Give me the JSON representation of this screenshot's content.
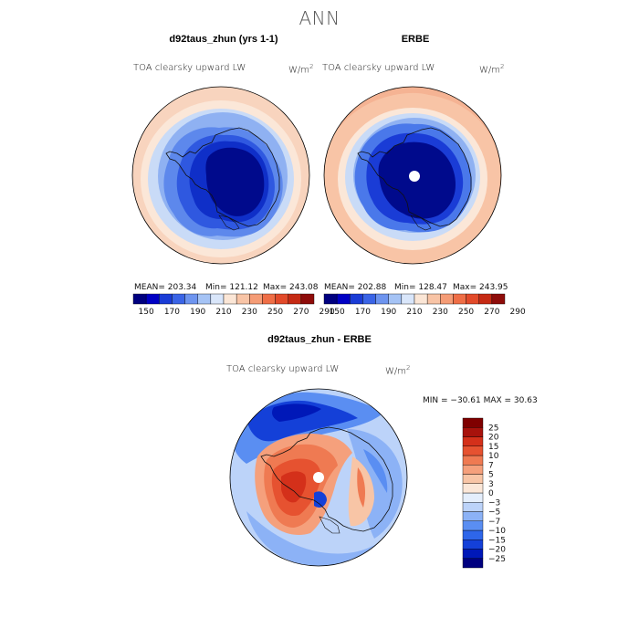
{
  "page": {
    "title": "ANN"
  },
  "panels": [
    {
      "title": "d92taus_zhun (yrs 1-1)",
      "left_label": "TOA clearsky upward LW",
      "right_label": "W/m",
      "unit_sup": "2",
      "stats": {
        "mean": "MEAN= 203.34",
        "min": "Min= 121.12",
        "max": "Max= 243.08"
      }
    },
    {
      "title": "ERBE",
      "left_label": "TOA clearsky upward LW",
      "right_label": "W/m",
      "unit_sup": "2",
      "stats": {
        "mean": "MEAN= 202.88",
        "min": "Min= 128.47",
        "max": "Max= 243.95"
      }
    },
    {
      "title": "d92taus_zhun - ERBE",
      "left_label": "TOA clearsky upward LW",
      "right_label": "W/m",
      "unit_sup": "2",
      "minmax": "MIN = −30.61 MAX =  30.63"
    }
  ],
  "chart_data": [
    {
      "type": "heatmap",
      "title": "d92taus_zhun (yrs 1-1)",
      "projection": "polar stereographic, south pole",
      "colorbar": {
        "orientation": "horizontal",
        "tick_labels": [
          "150",
          "170",
          "190",
          "210",
          "230",
          "250",
          "270",
          "290"
        ],
        "levels": [
          140,
          150,
          160,
          170,
          180,
          190,
          200,
          210,
          220,
          230,
          240,
          250,
          260,
          270,
          280,
          290,
          300
        ],
        "colors": [
          "#00007f",
          "#0000c4",
          "#1a3cd6",
          "#3a64e6",
          "#6d94ef",
          "#a5c3f5",
          "#d9e6fa",
          "#fbe6d6",
          "#f8c4a6",
          "#f59c76",
          "#ef6e46",
          "#e24a2a",
          "#c52a14",
          "#8e0c0a"
        ]
      },
      "stats": {
        "mean": 203.34,
        "min": 121.12,
        "max": 243.08
      }
    },
    {
      "type": "heatmap",
      "title": "ERBE",
      "projection": "polar stereographic, south pole",
      "colorbar": {
        "orientation": "horizontal",
        "tick_labels": [
          "150",
          "170",
          "190",
          "210",
          "230",
          "250",
          "270",
          "290"
        ]
      },
      "stats": {
        "mean": 202.88,
        "min": 128.47,
        "max": 243.95
      }
    },
    {
      "type": "heatmap",
      "title": "d92taus_zhun - ERBE",
      "projection": "polar stereographic, south pole",
      "colorbar": {
        "orientation": "vertical",
        "tick_labels": [
          "25",
          "20",
          "15",
          "10",
          "7",
          "5",
          "3",
          "0",
          "−3",
          "−5",
          "−7",
          "−10",
          "−15",
          "−20",
          "−25"
        ],
        "colors": [
          "#00007f",
          "#0018b8",
          "#1440d8",
          "#2e66ea",
          "#5a8ef2",
          "#8cb2f6",
          "#bcd3f9",
          "#e4eefc",
          "#fbe7d8",
          "#f8c5a6",
          "#f5a07c",
          "#ef7a52",
          "#e65230",
          "#d4301a",
          "#a8120c",
          "#7f0000"
        ]
      },
      "stats": {
        "min": -30.61,
        "max": 30.63
      }
    }
  ]
}
